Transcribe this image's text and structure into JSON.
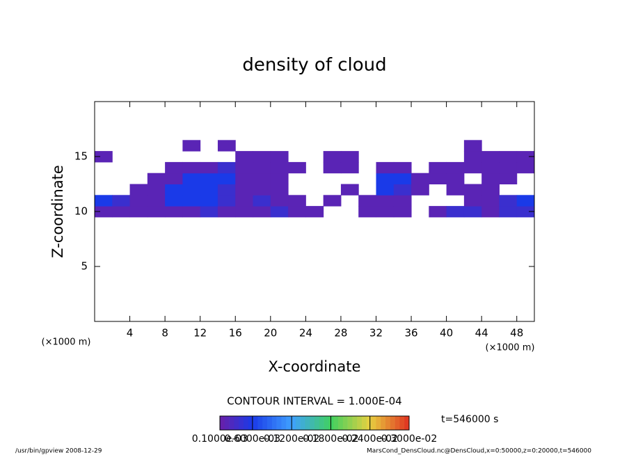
{
  "chart_data": {
    "type": "contour",
    "title": "density of cloud",
    "x_label": "X-coordinate",
    "y_label": "Z-coordinate",
    "x_unit": "(×1000 m)",
    "y_unit": "(×1000 m)",
    "xlim": [
      0,
      50
    ],
    "ylim": [
      0,
      20
    ],
    "xticks": [
      4,
      8,
      12,
      16,
      20,
      24,
      28,
      32,
      36,
      40,
      44,
      48
    ],
    "yticks": [
      5,
      10,
      15
    ],
    "x": [
      1,
      3,
      5,
      7,
      9,
      11,
      13,
      15,
      17,
      19,
      21,
      23,
      25,
      27,
      29,
      31,
      33,
      35,
      37,
      39,
      41,
      43,
      45,
      47,
      49
    ],
    "y": [
      10,
      11,
      12,
      13,
      14,
      15,
      16
    ],
    "z": [
      [
        0.0002,
        0.0002,
        0.0002,
        0.0002,
        0.0002,
        0.0002,
        0.0004,
        0.0002,
        0.0002,
        0.0002,
        0.0004,
        0.0002,
        0.0002,
        null,
        null,
        0.0002,
        0.0002,
        0.0002,
        null,
        0.0002,
        0.0004,
        0.0004,
        0.0002,
        0.0004,
        0.0004
      ],
      [
        0.0006,
        0.0004,
        0.0002,
        0.0002,
        0.0006,
        0.0006,
        0.0006,
        0.0004,
        0.0002,
        0.0004,
        0.0002,
        0.0002,
        null,
        0.0002,
        null,
        0.0002,
        0.0002,
        0.0002,
        null,
        null,
        null,
        0.0002,
        0.0002,
        0.0004,
        0.0006
      ],
      [
        null,
        null,
        0.0002,
        0.0002,
        0.0006,
        0.0006,
        0.0006,
        0.0004,
        0.0002,
        0.0002,
        0.0002,
        null,
        null,
        null,
        0.0002,
        null,
        0.0006,
        0.0004,
        0.0002,
        null,
        0.0002,
        0.0002,
        0.0002,
        null,
        null
      ],
      [
        null,
        null,
        null,
        0.0002,
        0.0002,
        0.0006,
        0.0006,
        0.0006,
        0.0002,
        0.0002,
        0.0002,
        null,
        null,
        null,
        null,
        null,
        0.0006,
        0.0006,
        0.0002,
        0.0002,
        0.0002,
        null,
        0.0002,
        0.0002,
        null
      ],
      [
        null,
        null,
        null,
        null,
        0.0002,
        0.0002,
        0.0002,
        0.0004,
        0.0002,
        0.0002,
        0.0002,
        0.0002,
        null,
        0.0002,
        0.0002,
        null,
        0.0002,
        0.0002,
        null,
        0.0002,
        0.0002,
        0.0002,
        0.0002,
        0.0002,
        0.0002
      ],
      [
        0.0002,
        null,
        null,
        null,
        null,
        null,
        null,
        null,
        0.0002,
        0.0002,
        0.0002,
        null,
        null,
        0.0002,
        0.0002,
        null,
        null,
        null,
        null,
        null,
        null,
        0.0002,
        0.0002,
        0.0002,
        0.0002
      ],
      [
        null,
        null,
        null,
        null,
        null,
        0.0002,
        null,
        0.0002,
        null,
        null,
        null,
        null,
        null,
        null,
        null,
        null,
        null,
        null,
        null,
        null,
        null,
        0.0002,
        null,
        null,
        null
      ]
    ],
    "contour_interval": "CONTOUR INTERVAL = 1.000E-04",
    "colorscale": [
      [
        0.0001,
        "#6a1fa8"
      ],
      [
        0.0006,
        "#1a3ae8"
      ],
      [
        0.0012,
        "#3fa0ff"
      ],
      [
        0.0018,
        "#40d060"
      ],
      [
        0.0024,
        "#e8d040"
      ],
      [
        0.003,
        "#e03020"
      ]
    ],
    "cticks": [
      {
        "value": 0.0001,
        "label": "0.1000e-03"
      },
      {
        "value": 0.0006,
        "label": "0.6000e-03"
      },
      {
        "value": 0.0012,
        "label": "0.1200e-02"
      },
      {
        "value": 0.0018,
        "label": "0.1800e-02"
      },
      {
        "value": 0.0024,
        "label": "0.2400e-02"
      },
      {
        "value": 0.003,
        "label": "0.3000e-02"
      }
    ],
    "time_label": "t=546000 s",
    "footer_left": "/usr/bin/gpview  2008-12-29",
    "footer_right": "MarsCond_DensCloud.nc@DensCloud,x=0:50000,z=0:20000,t=546000"
  }
}
